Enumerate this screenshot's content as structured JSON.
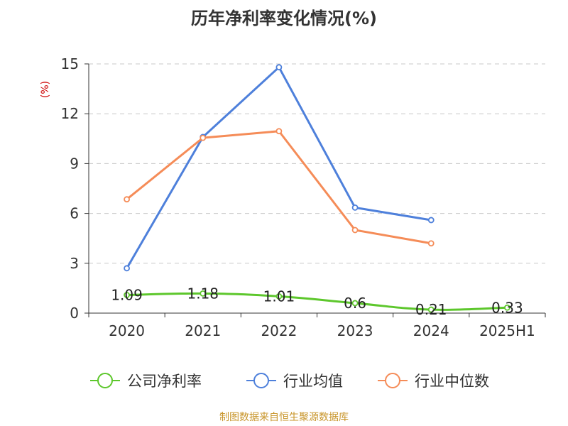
{
  "chart_data": {
    "type": "line",
    "title": "历年净利率变化情况(%)",
    "ylabel": "(%)",
    "categories": [
      "2020",
      "2021",
      "2022",
      "2023",
      "2024",
      "2025H1"
    ],
    "ylim": [
      0,
      15
    ],
    "yticks": [
      0,
      3,
      6,
      9,
      12,
      15
    ],
    "grid": true,
    "legend_position": "bottom",
    "series": [
      {
        "name": "公司净利率",
        "color": "#5dc72c",
        "values": [
          1.09,
          1.18,
          1.01,
          0.6,
          0.21,
          0.33
        ],
        "labels": [
          "1.09",
          "1.18",
          "1.01",
          "0.6",
          "0.21",
          "0.33"
        ],
        "smooth": true,
        "show_labels": true
      },
      {
        "name": "行业均值",
        "color": "#4e80db",
        "values": [
          2.7,
          10.6,
          14.8,
          6.35,
          5.6,
          null
        ],
        "smooth": false,
        "show_labels": false
      },
      {
        "name": "行业中位数",
        "color": "#f58c58",
        "values": [
          6.85,
          10.55,
          10.95,
          5.0,
          4.2,
          null
        ],
        "smooth": false,
        "show_labels": false
      }
    ]
  },
  "footer": {
    "source": "制图数据来自恒生聚源数据库"
  }
}
